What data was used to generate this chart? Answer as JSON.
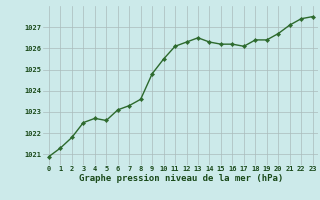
{
  "x": [
    0,
    1,
    2,
    3,
    4,
    5,
    6,
    7,
    8,
    9,
    10,
    11,
    12,
    13,
    14,
    15,
    16,
    17,
    18,
    19,
    20,
    21,
    22,
    23
  ],
  "y": [
    1020.9,
    1021.3,
    1021.8,
    1022.5,
    1022.7,
    1022.6,
    1023.1,
    1023.3,
    1023.6,
    1024.8,
    1025.5,
    1026.1,
    1026.3,
    1026.5,
    1026.3,
    1026.2,
    1026.2,
    1026.1,
    1026.4,
    1026.4,
    1026.7,
    1027.1,
    1027.4,
    1027.5
  ],
  "ylim": [
    1020.5,
    1028.0
  ],
  "yticks": [
    1021,
    1022,
    1023,
    1024,
    1025,
    1026,
    1027
  ],
  "xticks": [
    0,
    1,
    2,
    3,
    4,
    5,
    6,
    7,
    8,
    9,
    10,
    11,
    12,
    13,
    14,
    15,
    16,
    17,
    18,
    19,
    20,
    21,
    22,
    23
  ],
  "xlabel": "Graphe pression niveau de la mer (hPa)",
  "line_color": "#2d6a2d",
  "marker": "D",
  "marker_size": 2.2,
  "line_width": 1.0,
  "bg_color": "#cceaea",
  "grid_color": "#aabcbc",
  "label_color": "#1a4a1a",
  "fig_bg": "#cceaea"
}
